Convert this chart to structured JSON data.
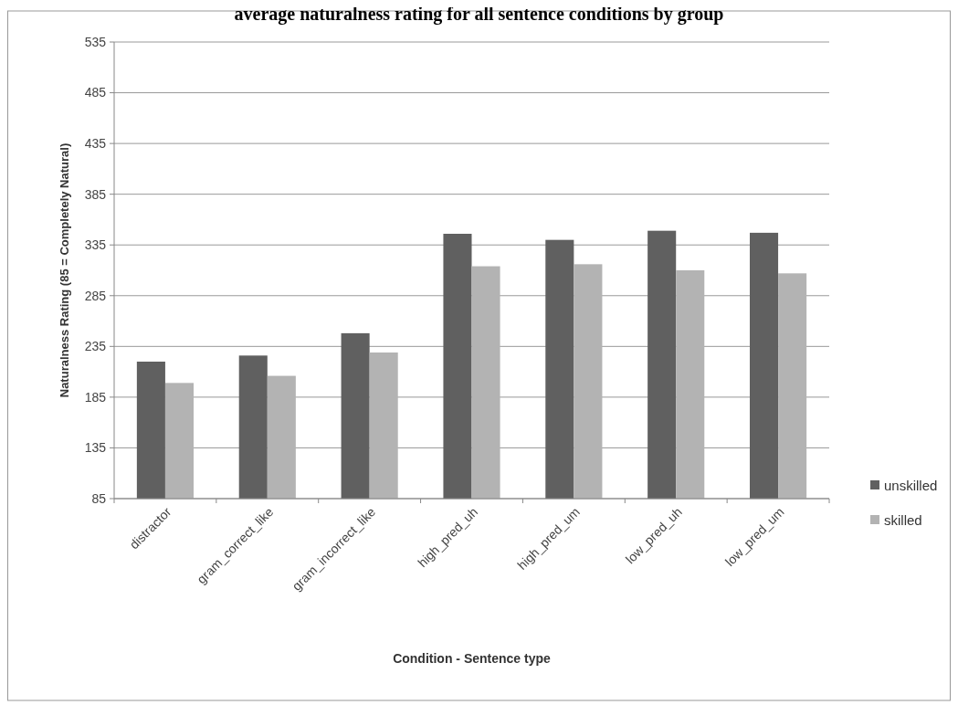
{
  "chart_data": {
    "type": "bar",
    "title": "average naturalness rating for all sentence conditions by group",
    "xlabel": "Condition - Sentence type",
    "ylabel": "Naturalness Rating (85 = Completely Natural)",
    "categories": [
      "distractor",
      "gram_correct_like",
      "gram_incorrect_like",
      "high_pred_uh",
      "high_pred_um",
      "low_pred_uh",
      "low_pred_um"
    ],
    "series": [
      {
        "name": "unskilled",
        "color": "#606060",
        "values": [
          220,
          226,
          248,
          346,
          340,
          349,
          347
        ]
      },
      {
        "name": "skilled",
        "color": "#b3b3b3",
        "values": [
          199,
          206,
          229,
          314,
          316,
          310,
          307
        ]
      }
    ],
    "ylim": [
      85,
      535
    ],
    "yticks": [
      85,
      135,
      185,
      235,
      285,
      335,
      385,
      435,
      485,
      535
    ],
    "grid": "y",
    "legend": "right"
  }
}
